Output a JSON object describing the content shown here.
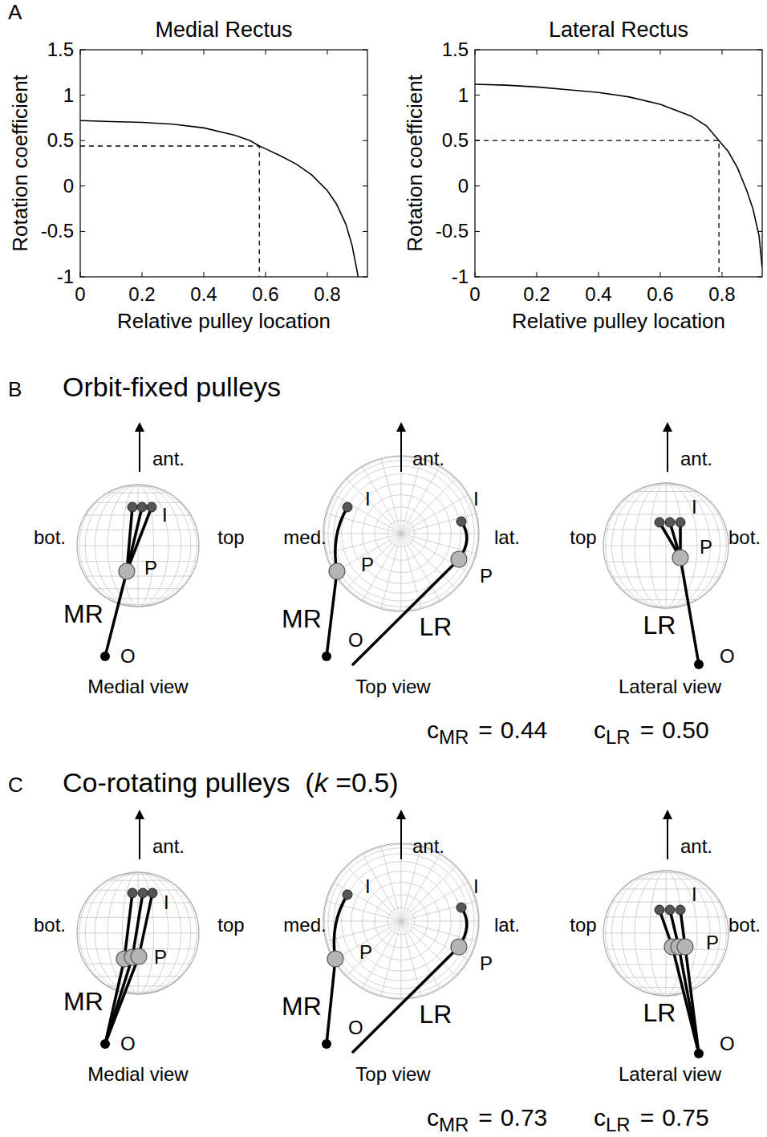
{
  "chart_data": [
    {
      "type": "line",
      "panel": "A",
      "title": "Medial Rectus",
      "x_label": "Relative pulley location",
      "y_label": "Rotation coefficient",
      "x": [
        0,
        0.1,
        0.2,
        0.3,
        0.4,
        0.5,
        0.55,
        0.58,
        0.6,
        0.65,
        0.7,
        0.75,
        0.8,
        0.83,
        0.86,
        0.88,
        0.9
      ],
      "values": [
        0.72,
        0.71,
        0.7,
        0.68,
        0.64,
        0.56,
        0.5,
        0.44,
        0.41,
        0.33,
        0.24,
        0.12,
        -0.05,
        -0.2,
        -0.42,
        -0.65,
        -1.0
      ],
      "color": "#000000",
      "xlim": [
        0,
        0.93
      ],
      "ylim": [
        -1,
        1.5
      ],
      "xticks": [
        0,
        0.2,
        0.4,
        0.6,
        0.8
      ],
      "yticks": [
        -1,
        -0.5,
        0,
        0.5,
        1,
        1.5
      ],
      "reference": {
        "x": 0.58,
        "y": 0.44
      },
      "grid": false
    },
    {
      "type": "line",
      "title": "Lateral Rectus",
      "x_label": "Relative pulley location",
      "y_label": "Rotation coefficient",
      "x": [
        0,
        0.1,
        0.2,
        0.3,
        0.4,
        0.5,
        0.6,
        0.7,
        0.75,
        0.79,
        0.82,
        0.85,
        0.88,
        0.9,
        0.92,
        0.93
      ],
      "values": [
        1.12,
        1.11,
        1.09,
        1.06,
        1.03,
        0.98,
        0.9,
        0.77,
        0.66,
        0.5,
        0.38,
        0.2,
        -0.05,
        -0.25,
        -0.55,
        -0.9
      ],
      "color": "#000000",
      "xlim": [
        0,
        0.93
      ],
      "ylim": [
        -1,
        1.5
      ],
      "xticks": [
        0,
        0.2,
        0.4,
        0.6,
        0.8
      ],
      "yticks": [
        -1,
        -0.5,
        0,
        0.5,
        1,
        1.5
      ],
      "reference": {
        "x": 0.79,
        "y": 0.5
      },
      "grid": false
    }
  ],
  "panels": [
    {
      "letter": "B",
      "title_parts": [
        {
          "text": "Orbit-fixed pulleys"
        }
      ],
      "views": [
        {
          "name": "Medial view",
          "axis_labels": {
            "up": "ant.",
            "left": "bot.",
            "right": "top"
          },
          "muscles": [
            {
              "name": "MR",
              "origin": "O",
              "pulley": "P",
              "insertion": "I"
            }
          ]
        },
        {
          "name": "Top view",
          "axis_labels": {
            "up": "ant.",
            "left": "med.",
            "right": "lat."
          },
          "muscles": [
            {
              "name": "MR",
              "origin": "O",
              "pulley": "P",
              "insertion": "I"
            },
            {
              "name": "LR",
              "pulley": "P",
              "insertion": "I"
            }
          ]
        },
        {
          "name": "Lateral view",
          "axis_labels": {
            "up": "ant.",
            "left": "top",
            "right": "bot."
          },
          "muscles": [
            {
              "name": "LR",
              "origin": "O",
              "pulley": "P",
              "insertion": "I"
            }
          ]
        }
      ],
      "coefficients": [
        {
          "symbol": "c",
          "sub": "MR",
          "relation": "=",
          "value": "0.44"
        },
        {
          "symbol": "c",
          "sub": "LR",
          "relation": "=",
          "value": "0.50"
        }
      ]
    },
    {
      "letter": "C",
      "title_parts": [
        {
          "text": "Co-rotating pulleys  ("
        },
        {
          "text": "k",
          "italic": true
        },
        {
          "text": " =0.5)"
        }
      ],
      "views": [
        {
          "name": "Medial view",
          "axis_labels": {
            "up": "ant.",
            "left": "bot.",
            "right": "top"
          },
          "muscles": [
            {
              "name": "MR",
              "origin": "O",
              "pulley": "P",
              "insertion": "I"
            }
          ]
        },
        {
          "name": "Top view",
          "axis_labels": {
            "up": "ant.",
            "left": "med.",
            "right": "lat."
          },
          "muscles": [
            {
              "name": "MR",
              "origin": "O",
              "pulley": "P",
              "insertion": "I"
            },
            {
              "name": "LR",
              "pulley": "P",
              "insertion": "I"
            }
          ]
        },
        {
          "name": "Lateral view",
          "axis_labels": {
            "up": "ant.",
            "left": "top",
            "right": "bot."
          },
          "muscles": [
            {
              "name": "LR",
              "origin": "O",
              "pulley": "P",
              "insertion": "I"
            }
          ]
        }
      ],
      "coefficients": [
        {
          "symbol": "c",
          "sub": "MR",
          "relation": "=",
          "value": "0.73"
        },
        {
          "symbol": "c",
          "sub": "LR",
          "relation": "=",
          "value": "0.75"
        }
      ]
    }
  ]
}
